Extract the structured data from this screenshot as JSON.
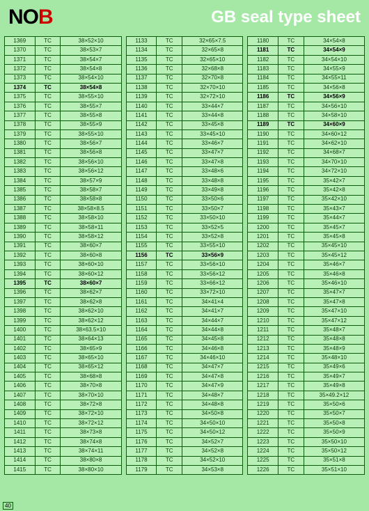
{
  "header": {
    "logo_n": "N",
    "logo_o": "O",
    "logo_b": "B",
    "title": "GB seal type sheet"
  },
  "footer": "40",
  "columns": [
    [
      {
        "id": "1369",
        "t": "TC",
        "s": "38×52×10"
      },
      {
        "id": "1370",
        "t": "TC",
        "s": "38×53×7"
      },
      {
        "id": "1371",
        "t": "TC",
        "s": "38×54×7"
      },
      {
        "id": "1372",
        "t": "TC",
        "s": "38×54×8"
      },
      {
        "id": "1373",
        "t": "TC",
        "s": "38×54×10"
      },
      {
        "id": "1374",
        "t": "TC",
        "s": "38×54×8",
        "bold": true
      },
      {
        "id": "1375",
        "t": "TC",
        "s": "38×55×10"
      },
      {
        "id": "1376",
        "t": "TC",
        "s": "38×55×7"
      },
      {
        "id": "1377",
        "t": "TC",
        "s": "38×55×8"
      },
      {
        "id": "1378",
        "t": "TC",
        "s": "38×55×9"
      },
      {
        "id": "1379",
        "t": "TC",
        "s": "38×55×10"
      },
      {
        "id": "1380",
        "t": "TC",
        "s": "38×56×7"
      },
      {
        "id": "1381",
        "t": "TC",
        "s": "38×56×8"
      },
      {
        "id": "1382",
        "t": "TC",
        "s": "38×56×10"
      },
      {
        "id": "1383",
        "t": "TC",
        "s": "38×56×12"
      },
      {
        "id": "1384",
        "t": "TC",
        "s": "38×57×9"
      },
      {
        "id": "1385",
        "t": "TC",
        "s": "38×58×7"
      },
      {
        "id": "1386",
        "t": "TC",
        "s": "38×58×8"
      },
      {
        "id": "1387",
        "t": "TC",
        "s": "38×58×8.5"
      },
      {
        "id": "1388",
        "t": "TC",
        "s": "38×58×10"
      },
      {
        "id": "1389",
        "t": "TC",
        "s": "38×58×11"
      },
      {
        "id": "1390",
        "t": "TC",
        "s": "38×58×12"
      },
      {
        "id": "1391",
        "t": "TC",
        "s": "38×60×7"
      },
      {
        "id": "1392",
        "t": "TC",
        "s": "38×60×8"
      },
      {
        "id": "1393",
        "t": "TC",
        "s": "38×60×10"
      },
      {
        "id": "1394",
        "t": "TC",
        "s": "38×60×12"
      },
      {
        "id": "1395",
        "t": "TC",
        "s": "38×60×7",
        "bold": true
      },
      {
        "id": "1396",
        "t": "TC",
        "s": "38×62×7"
      },
      {
        "id": "1397",
        "t": "TC",
        "s": "38×62×8"
      },
      {
        "id": "1398",
        "t": "TC",
        "s": "38×62×10"
      },
      {
        "id": "1399",
        "t": "TC",
        "s": "38×62×12"
      },
      {
        "id": "1400",
        "t": "TC",
        "s": "38×63.5×10"
      },
      {
        "id": "1401",
        "t": "TC",
        "s": "38×64×13"
      },
      {
        "id": "1402",
        "t": "TC",
        "s": "38×65×9"
      },
      {
        "id": "1403",
        "t": "TC",
        "s": "38×65×10"
      },
      {
        "id": "1404",
        "t": "TC",
        "s": "38×65×12"
      },
      {
        "id": "1405",
        "t": "TC",
        "s": "38×68×8"
      },
      {
        "id": "1406",
        "t": "TC",
        "s": "38×70×8"
      },
      {
        "id": "1407",
        "t": "TC",
        "s": "38×70×10"
      },
      {
        "id": "1408",
        "t": "TC",
        "s": "38×72×8"
      },
      {
        "id": "1409",
        "t": "TC",
        "s": "38×72×10"
      },
      {
        "id": "1410",
        "t": "TC",
        "s": "38×72×12"
      },
      {
        "id": "1411",
        "t": "TC",
        "s": "38×73×8"
      },
      {
        "id": "1412",
        "t": "TC",
        "s": "38×74×8"
      },
      {
        "id": "1413",
        "t": "TC",
        "s": "38×74×11"
      },
      {
        "id": "1414",
        "t": "TC",
        "s": "38×80×8"
      },
      {
        "id": "1415",
        "t": "TC",
        "s": "38×80×10"
      }
    ],
    [
      {
        "id": "1133",
        "t": "TC",
        "s": "32×65×7.5"
      },
      {
        "id": "1134",
        "t": "TC",
        "s": "32×65×8"
      },
      {
        "id": "1135",
        "t": "TC",
        "s": "32×65×10"
      },
      {
        "id": "1136",
        "t": "TC",
        "s": "32×68×8"
      },
      {
        "id": "1137",
        "t": "TC",
        "s": "32×70×8"
      },
      {
        "id": "1138",
        "t": "TC",
        "s": "32×70×10"
      },
      {
        "id": "1139",
        "t": "TC",
        "s": "32×72×10"
      },
      {
        "id": "1140",
        "t": "TC",
        "s": "33×44×7"
      },
      {
        "id": "1141",
        "t": "TC",
        "s": "33×44×8"
      },
      {
        "id": "1142",
        "t": "TC",
        "s": "33×45×8"
      },
      {
        "id": "1143",
        "t": "TC",
        "s": "33×45×10"
      },
      {
        "id": "1144",
        "t": "TC",
        "s": "33×46×7"
      },
      {
        "id": "1145",
        "t": "TC",
        "s": "33×47×7"
      },
      {
        "id": "1146",
        "t": "TC",
        "s": "33×47×8"
      },
      {
        "id": "1147",
        "t": "TC",
        "s": "33×48×6"
      },
      {
        "id": "1148",
        "t": "TC",
        "s": "33×48×8"
      },
      {
        "id": "1149",
        "t": "TC",
        "s": "33×49×8"
      },
      {
        "id": "1150",
        "t": "TC",
        "s": "33×50×6"
      },
      {
        "id": "1151",
        "t": "TC",
        "s": "33×50×7"
      },
      {
        "id": "1152",
        "t": "TC",
        "s": "33×50×10"
      },
      {
        "id": "1153",
        "t": "TC",
        "s": "33×52×5"
      },
      {
        "id": "1154",
        "t": "TC",
        "s": "33×52×8"
      },
      {
        "id": "1155",
        "t": "TC",
        "s": "33×55×10"
      },
      {
        "id": "1156",
        "t": "TC",
        "s": "33×56×9",
        "bold": true
      },
      {
        "id": "1157",
        "t": "TC",
        "s": "33×56×10"
      },
      {
        "id": "1158",
        "t": "TC",
        "s": "33×56×12"
      },
      {
        "id": "1159",
        "t": "TC",
        "s": "33×66×12"
      },
      {
        "id": "1160",
        "t": "TC",
        "s": "33×72×10"
      },
      {
        "id": "1161",
        "t": "TC",
        "s": "34×41×4"
      },
      {
        "id": "1162",
        "t": "TC",
        "s": "34×41×7"
      },
      {
        "id": "1163",
        "t": "TC",
        "s": "34×44×7"
      },
      {
        "id": "1164",
        "t": "TC",
        "s": "34×44×8"
      },
      {
        "id": "1165",
        "t": "TC",
        "s": "34×45×8"
      },
      {
        "id": "1166",
        "t": "TC",
        "s": "34×46×8"
      },
      {
        "id": "1167",
        "t": "TC",
        "s": "34×46×10"
      },
      {
        "id": "1168",
        "t": "TC",
        "s": "34×47×7"
      },
      {
        "id": "1169",
        "t": "TC",
        "s": "34×47×8"
      },
      {
        "id": "1170",
        "t": "TC",
        "s": "34×47×9"
      },
      {
        "id": "1171",
        "t": "TC",
        "s": "34×48×7"
      },
      {
        "id": "1172",
        "t": "TC",
        "s": "34×48×8"
      },
      {
        "id": "1173",
        "t": "TC",
        "s": "34×50×8"
      },
      {
        "id": "1174",
        "t": "TC",
        "s": "34×50×10"
      },
      {
        "id": "1175",
        "t": "TC",
        "s": "34×50×12"
      },
      {
        "id": "1176",
        "t": "TC",
        "s": "34×52×7"
      },
      {
        "id": "1177",
        "t": "TC",
        "s": "34×52×8"
      },
      {
        "id": "1178",
        "t": "TC",
        "s": "34×52×10"
      },
      {
        "id": "1179",
        "t": "TC",
        "s": "34×53×8"
      }
    ],
    [
      {
        "id": "1180",
        "t": "TC",
        "s": "34×54×8"
      },
      {
        "id": "1181",
        "t": "TC",
        "s": "34×54×9",
        "bold": true
      },
      {
        "id": "1182",
        "t": "TC",
        "s": "34×54×10"
      },
      {
        "id": "1183",
        "t": "TC",
        "s": "34×55×9"
      },
      {
        "id": "1184",
        "t": "TC",
        "s": "34×55×11"
      },
      {
        "id": "1185",
        "t": "TC",
        "s": "34×56×8"
      },
      {
        "id": "1186",
        "t": "TC",
        "s": "34×56×9",
        "bold": true
      },
      {
        "id": "1187",
        "t": "TC",
        "s": "34×56×10"
      },
      {
        "id": "1188",
        "t": "TC",
        "s": "34×58×10"
      },
      {
        "id": "1189",
        "t": "TC",
        "s": "34×60×9",
        "bold": true
      },
      {
        "id": "1190",
        "t": "TC",
        "s": "34×60×12"
      },
      {
        "id": "1191",
        "t": "TC",
        "s": "34×62×10"
      },
      {
        "id": "1192",
        "t": "TC",
        "s": "34×68×7"
      },
      {
        "id": "1193",
        "t": "TC",
        "s": "34×70×10"
      },
      {
        "id": "1194",
        "t": "TC",
        "s": "34×72×10"
      },
      {
        "id": "1195",
        "t": "TC",
        "s": "35×42×7"
      },
      {
        "id": "1196",
        "t": "TC",
        "s": "35×42×8"
      },
      {
        "id": "1197",
        "t": "TC",
        "s": "35×42×10"
      },
      {
        "id": "1198",
        "t": "TC",
        "s": "35×43×7"
      },
      {
        "id": "1199",
        "t": "TC",
        "s": "35×44×7"
      },
      {
        "id": "1200",
        "t": "TC",
        "s": "35×45×7"
      },
      {
        "id": "1201",
        "t": "TC",
        "s": "35×45×8"
      },
      {
        "id": "1202",
        "t": "TC",
        "s": "35×45×10"
      },
      {
        "id": "1203",
        "t": "TC",
        "s": "35×45×12"
      },
      {
        "id": "1204",
        "t": "TC",
        "s": "35×46×7"
      },
      {
        "id": "1205",
        "t": "TC",
        "s": "35×46×8"
      },
      {
        "id": "1206",
        "t": "TC",
        "s": "35×46×10"
      },
      {
        "id": "1207",
        "t": "TC",
        "s": "35×47×7"
      },
      {
        "id": "1208",
        "t": "TC",
        "s": "35×47×8"
      },
      {
        "id": "1209",
        "t": "TC",
        "s": "35×47×10"
      },
      {
        "id": "1210",
        "t": "TC",
        "s": "35×47×12"
      },
      {
        "id": "1211",
        "t": "TC",
        "s": "35×48×7"
      },
      {
        "id": "1212",
        "t": "TC",
        "s": "35×48×8"
      },
      {
        "id": "1213",
        "t": "TC",
        "s": "35×48×9"
      },
      {
        "id": "1214",
        "t": "TC",
        "s": "35×48×10"
      },
      {
        "id": "1215",
        "t": "TC",
        "s": "35×49×6"
      },
      {
        "id": "1216",
        "t": "TC",
        "s": "35×49×7"
      },
      {
        "id": "1217",
        "t": "TC",
        "s": "35×49×8"
      },
      {
        "id": "1218",
        "t": "TC",
        "s": "35×49.2×12"
      },
      {
        "id": "1219",
        "t": "TC",
        "s": "35×50×6"
      },
      {
        "id": "1220",
        "t": "TC",
        "s": "35×50×7"
      },
      {
        "id": "1221",
        "t": "TC",
        "s": "35×50×8"
      },
      {
        "id": "1222",
        "t": "TC",
        "s": "35×50×9"
      },
      {
        "id": "1223",
        "t": "TC",
        "s": "35×50×10"
      },
      {
        "id": "1224",
        "t": "TC",
        "s": "35×50×12"
      },
      {
        "id": "1225",
        "t": "TC",
        "s": "35×51×8"
      },
      {
        "id": "1226",
        "t": "TC",
        "s": "35×51×10"
      }
    ]
  ]
}
